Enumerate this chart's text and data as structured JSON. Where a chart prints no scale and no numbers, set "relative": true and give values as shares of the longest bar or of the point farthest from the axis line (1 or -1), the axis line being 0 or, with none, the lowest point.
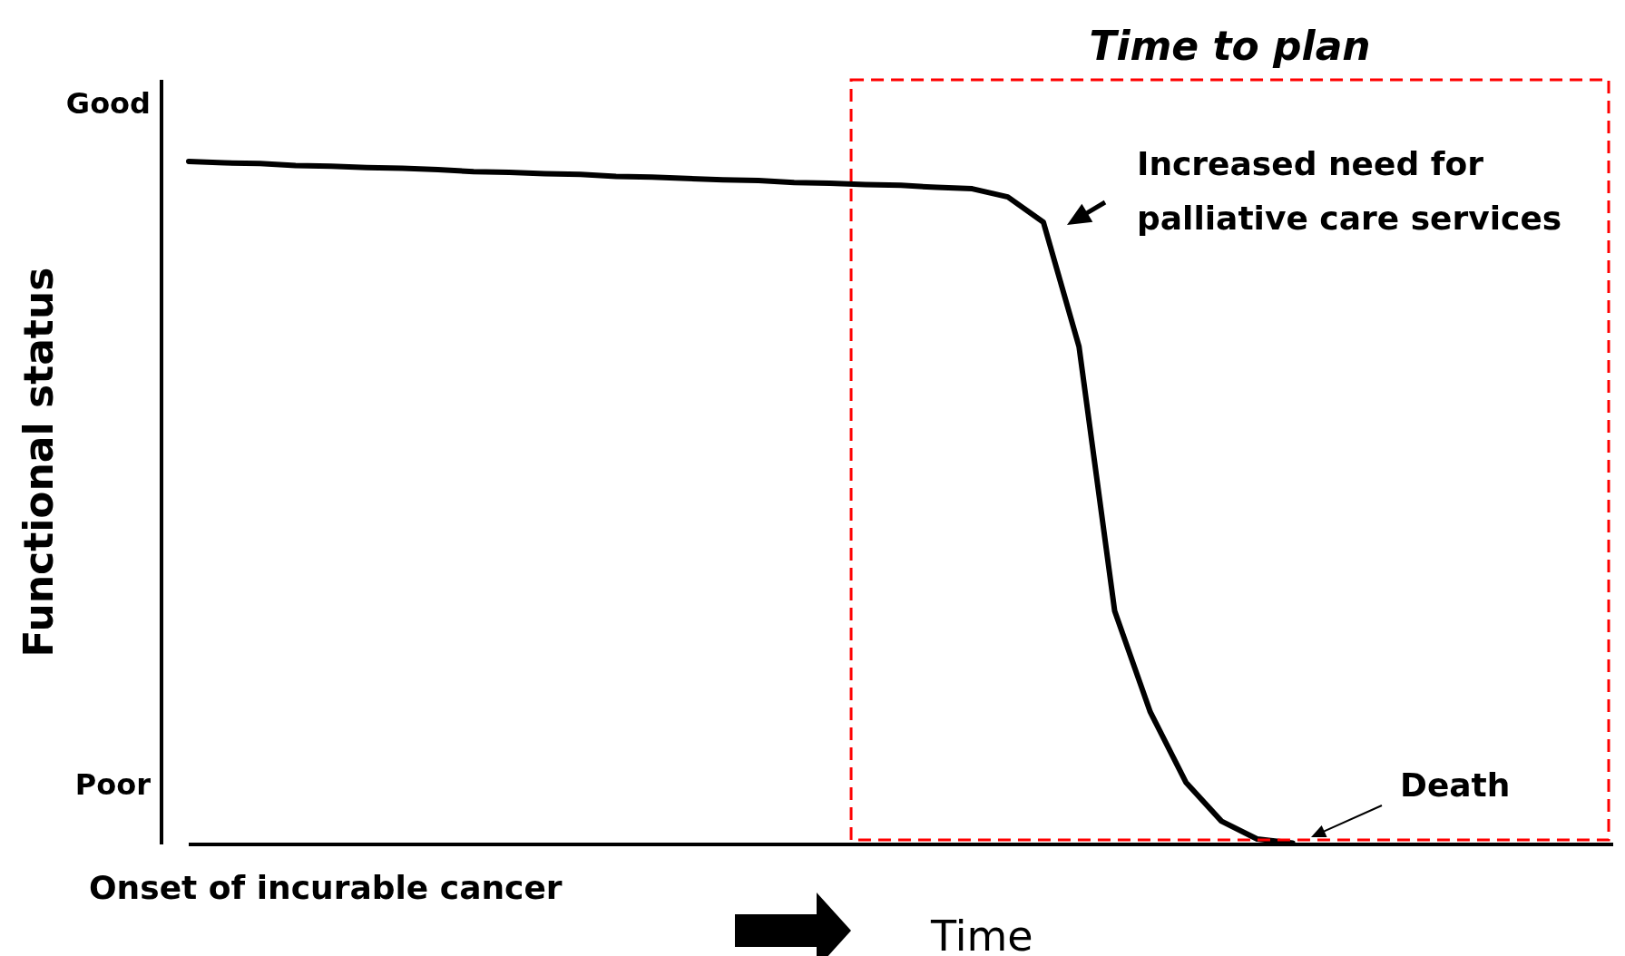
{
  "chart_data": {
    "type": "line",
    "xlabel": "Time",
    "ylabel": "Functional status",
    "relative": true,
    "categories": [
      null,
      null,
      null,
      null,
      null,
      null,
      null,
      null,
      null,
      null,
      null,
      null,
      null,
      null,
      null,
      null,
      null,
      null,
      null,
      null,
      null,
      null,
      null,
      null,
      null,
      null,
      null,
      null,
      null,
      null,
      null,
      null,
      null,
      null,
      null,
      null,
      null,
      null,
      null,
      null,
      null
    ],
    "series": [
      {
        "color": "#000000",
        "values": [
          1.0,
          0.998,
          0.997,
          0.994,
          0.993,
          0.991,
          0.99,
          0.988,
          0.985,
          0.984,
          0.982,
          0.981,
          0.978,
          0.977,
          0.975,
          0.973,
          0.972,
          0.969,
          0.968,
          0.966,
          0.965,
          0.962,
          0.96,
          0.948,
          0.911,
          0.729,
          0.342,
          0.194,
          0.091,
          0.034,
          0.008,
          0.002,
          null,
          null,
          null,
          null,
          null,
          null,
          null,
          null,
          null
        ]
      }
    ],
    "annotations": [
      "Good",
      "Poor",
      "Onset of incurable cancer",
      "Time to plan",
      "Increased need for palliative care services",
      "Death"
    ]
  }
}
